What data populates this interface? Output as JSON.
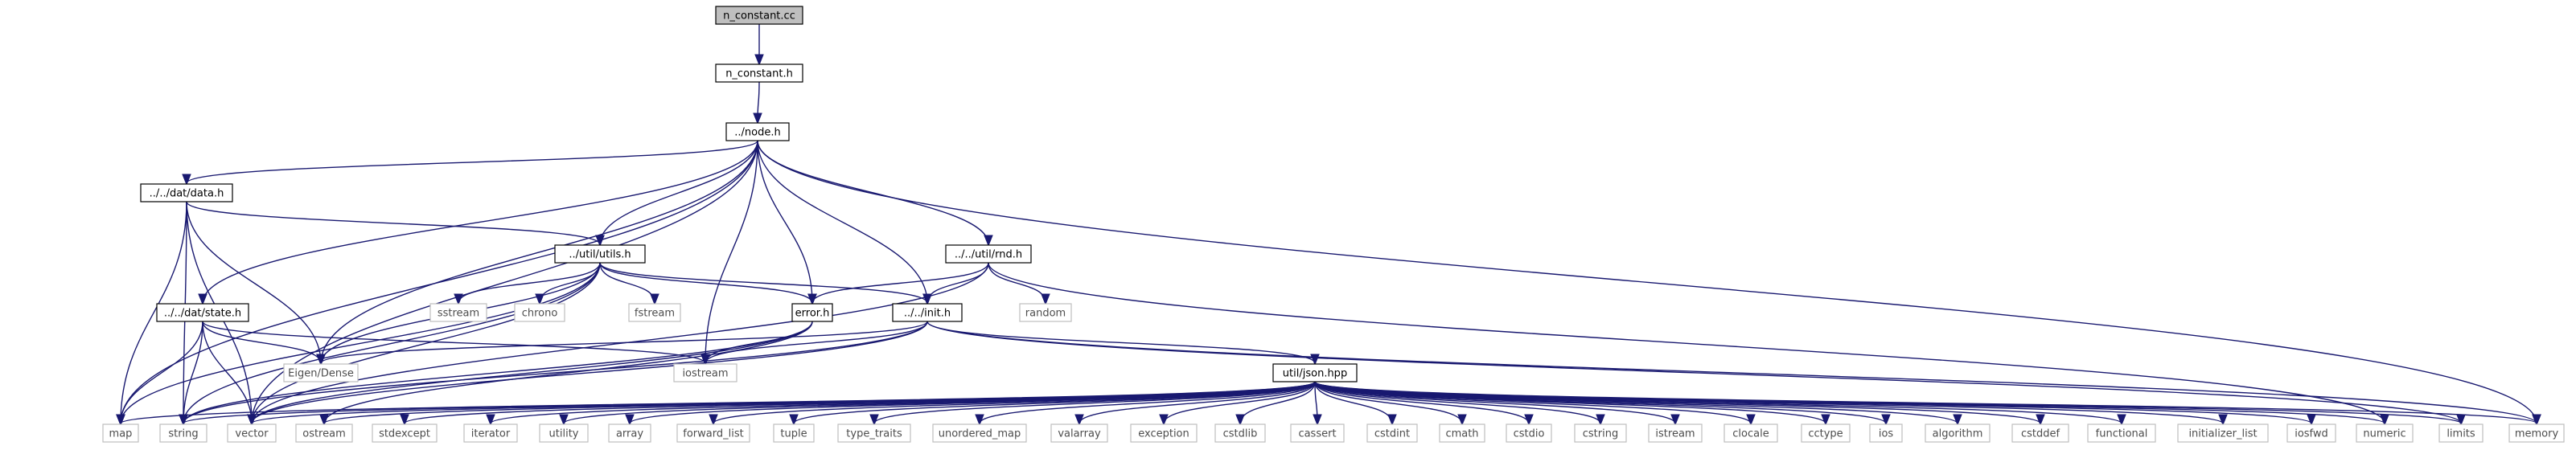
{
  "graph": {
    "colors": {
      "root_fill": "#bfbfbf",
      "root_stroke": "#000000",
      "project_fill": "#ffffff",
      "project_stroke": "#000000",
      "system_fill": "#ffffff",
      "system_stroke": "#bfbfbf",
      "system_text": "#4d4d4d",
      "edge": "#191970"
    },
    "nodes": [
      {
        "id": "n_constant_cc",
        "label": "n_constant.cc",
        "kind": "root"
      },
      {
        "id": "n_constant_h",
        "label": "n_constant.h",
        "kind": "project"
      },
      {
        "id": "node_h",
        "label": "../node.h",
        "kind": "project"
      },
      {
        "id": "dat_data_h",
        "label": "../../dat/data.h",
        "kind": "project"
      },
      {
        "id": "util_utils_h",
        "label": "../util/utils.h",
        "kind": "project"
      },
      {
        "id": "util_rnd_h",
        "label": "../../util/rnd.h",
        "kind": "project"
      },
      {
        "id": "dat_state_h",
        "label": "../../dat/state.h",
        "kind": "project"
      },
      {
        "id": "error_h",
        "label": "error.h",
        "kind": "project"
      },
      {
        "id": "init_h",
        "label": "../../init.h",
        "kind": "project"
      },
      {
        "id": "json_hpp",
        "label": "util/json.hpp",
        "kind": "project"
      },
      {
        "id": "sstream",
        "label": "sstream",
        "kind": "system"
      },
      {
        "id": "chrono",
        "label": "chrono",
        "kind": "system"
      },
      {
        "id": "fstream",
        "label": "fstream",
        "kind": "system"
      },
      {
        "id": "random",
        "label": "random",
        "kind": "system"
      },
      {
        "id": "eigen",
        "label": "Eigen/Dense",
        "kind": "system"
      },
      {
        "id": "iostream",
        "label": "iostream",
        "kind": "system"
      },
      {
        "id": "map",
        "label": "map",
        "kind": "system"
      },
      {
        "id": "string",
        "label": "string",
        "kind": "system"
      },
      {
        "id": "vector",
        "label": "vector",
        "kind": "system"
      },
      {
        "id": "ostream",
        "label": "ostream",
        "kind": "system"
      },
      {
        "id": "stdexcept",
        "label": "stdexcept",
        "kind": "system"
      },
      {
        "id": "iterator",
        "label": "iterator",
        "kind": "system"
      },
      {
        "id": "utility",
        "label": "utility",
        "kind": "system"
      },
      {
        "id": "array",
        "label": "array",
        "kind": "system"
      },
      {
        "id": "forward_list",
        "label": "forward_list",
        "kind": "system"
      },
      {
        "id": "tuple",
        "label": "tuple",
        "kind": "system"
      },
      {
        "id": "type_traits",
        "label": "type_traits",
        "kind": "system"
      },
      {
        "id": "unordered_map",
        "label": "unordered_map",
        "kind": "system"
      },
      {
        "id": "valarray",
        "label": "valarray",
        "kind": "system"
      },
      {
        "id": "exception",
        "label": "exception",
        "kind": "system"
      },
      {
        "id": "cstdlib",
        "label": "cstdlib",
        "kind": "system"
      },
      {
        "id": "cassert",
        "label": "cassert",
        "kind": "system"
      },
      {
        "id": "cstdint",
        "label": "cstdint",
        "kind": "system"
      },
      {
        "id": "cmath",
        "label": "cmath",
        "kind": "system"
      },
      {
        "id": "cstdio",
        "label": "cstdio",
        "kind": "system"
      },
      {
        "id": "cstring",
        "label": "cstring",
        "kind": "system"
      },
      {
        "id": "istream",
        "label": "istream",
        "kind": "system"
      },
      {
        "id": "clocale",
        "label": "clocale",
        "kind": "system"
      },
      {
        "id": "cctype",
        "label": "cctype",
        "kind": "system"
      },
      {
        "id": "ios",
        "label": "ios",
        "kind": "system"
      },
      {
        "id": "algorithm",
        "label": "algorithm",
        "kind": "system"
      },
      {
        "id": "cstddef",
        "label": "cstddef",
        "kind": "system"
      },
      {
        "id": "functional",
        "label": "functional",
        "kind": "system"
      },
      {
        "id": "initializer_list",
        "label": "initializer_list",
        "kind": "system"
      },
      {
        "id": "iosfwd",
        "label": "iosfwd",
        "kind": "system"
      },
      {
        "id": "numeric",
        "label": "numeric",
        "kind": "system"
      },
      {
        "id": "limits",
        "label": "limits",
        "kind": "system"
      },
      {
        "id": "memory",
        "label": "memory",
        "kind": "system"
      }
    ],
    "edges": [
      [
        "n_constant_cc",
        "n_constant_h"
      ],
      [
        "n_constant_h",
        "node_h"
      ],
      [
        "node_h",
        "dat_data_h"
      ],
      [
        "node_h",
        "util_utils_h"
      ],
      [
        "node_h",
        "util_rnd_h"
      ],
      [
        "node_h",
        "dat_state_h"
      ],
      [
        "node_h",
        "error_h"
      ],
      [
        "node_h",
        "init_h"
      ],
      [
        "node_h",
        "eigen"
      ],
      [
        "node_h",
        "iostream"
      ],
      [
        "node_h",
        "map"
      ],
      [
        "node_h",
        "vector"
      ],
      [
        "node_h",
        "memory"
      ],
      [
        "dat_data_h",
        "util_utils_h"
      ],
      [
        "dat_data_h",
        "eigen"
      ],
      [
        "dat_data_h",
        "map"
      ],
      [
        "dat_data_h",
        "string"
      ],
      [
        "dat_data_h",
        "vector"
      ],
      [
        "util_utils_h",
        "sstream"
      ],
      [
        "util_utils_h",
        "chrono"
      ],
      [
        "util_utils_h",
        "fstream"
      ],
      [
        "util_utils_h",
        "error_h"
      ],
      [
        "util_utils_h",
        "init_h"
      ],
      [
        "util_utils_h",
        "eigen"
      ],
      [
        "util_utils_h",
        "map"
      ],
      [
        "util_utils_h",
        "string"
      ],
      [
        "util_utils_h",
        "vector"
      ],
      [
        "util_rnd_h",
        "random"
      ],
      [
        "util_rnd_h",
        "error_h"
      ],
      [
        "util_rnd_h",
        "init_h"
      ],
      [
        "util_rnd_h",
        "vector"
      ],
      [
        "util_rnd_h",
        "numeric"
      ],
      [
        "dat_state_h",
        "eigen"
      ],
      [
        "dat_state_h",
        "iostream"
      ],
      [
        "dat_state_h",
        "map"
      ],
      [
        "dat_state_h",
        "string"
      ],
      [
        "dat_state_h",
        "vector"
      ],
      [
        "error_h",
        "iostream"
      ],
      [
        "error_h",
        "string"
      ],
      [
        "error_h",
        "vector"
      ],
      [
        "error_h",
        "ostream"
      ],
      [
        "init_h",
        "json_hpp"
      ],
      [
        "init_h",
        "eigen"
      ],
      [
        "init_h",
        "iostream"
      ],
      [
        "init_h",
        "vector"
      ],
      [
        "init_h",
        "string"
      ],
      [
        "init_h",
        "limits"
      ],
      [
        "init_h",
        "memory"
      ],
      [
        "json_hpp",
        "map"
      ],
      [
        "json_hpp",
        "string"
      ],
      [
        "json_hpp",
        "vector"
      ],
      [
        "json_hpp",
        "ostream"
      ],
      [
        "json_hpp",
        "stdexcept"
      ],
      [
        "json_hpp",
        "iterator"
      ],
      [
        "json_hpp",
        "utility"
      ],
      [
        "json_hpp",
        "array"
      ],
      [
        "json_hpp",
        "forward_list"
      ],
      [
        "json_hpp",
        "tuple"
      ],
      [
        "json_hpp",
        "type_traits"
      ],
      [
        "json_hpp",
        "unordered_map"
      ],
      [
        "json_hpp",
        "valarray"
      ],
      [
        "json_hpp",
        "exception"
      ],
      [
        "json_hpp",
        "cstdlib"
      ],
      [
        "json_hpp",
        "cassert"
      ],
      [
        "json_hpp",
        "cstdint"
      ],
      [
        "json_hpp",
        "cmath"
      ],
      [
        "json_hpp",
        "cstdio"
      ],
      [
        "json_hpp",
        "cstring"
      ],
      [
        "json_hpp",
        "istream"
      ],
      [
        "json_hpp",
        "clocale"
      ],
      [
        "json_hpp",
        "cctype"
      ],
      [
        "json_hpp",
        "ios"
      ],
      [
        "json_hpp",
        "algorithm"
      ],
      [
        "json_hpp",
        "cstddef"
      ],
      [
        "json_hpp",
        "functional"
      ],
      [
        "json_hpp",
        "initializer_list"
      ],
      [
        "json_hpp",
        "iosfwd"
      ],
      [
        "json_hpp",
        "numeric"
      ],
      [
        "json_hpp",
        "limits"
      ],
      [
        "json_hpp",
        "memory"
      ]
    ]
  }
}
